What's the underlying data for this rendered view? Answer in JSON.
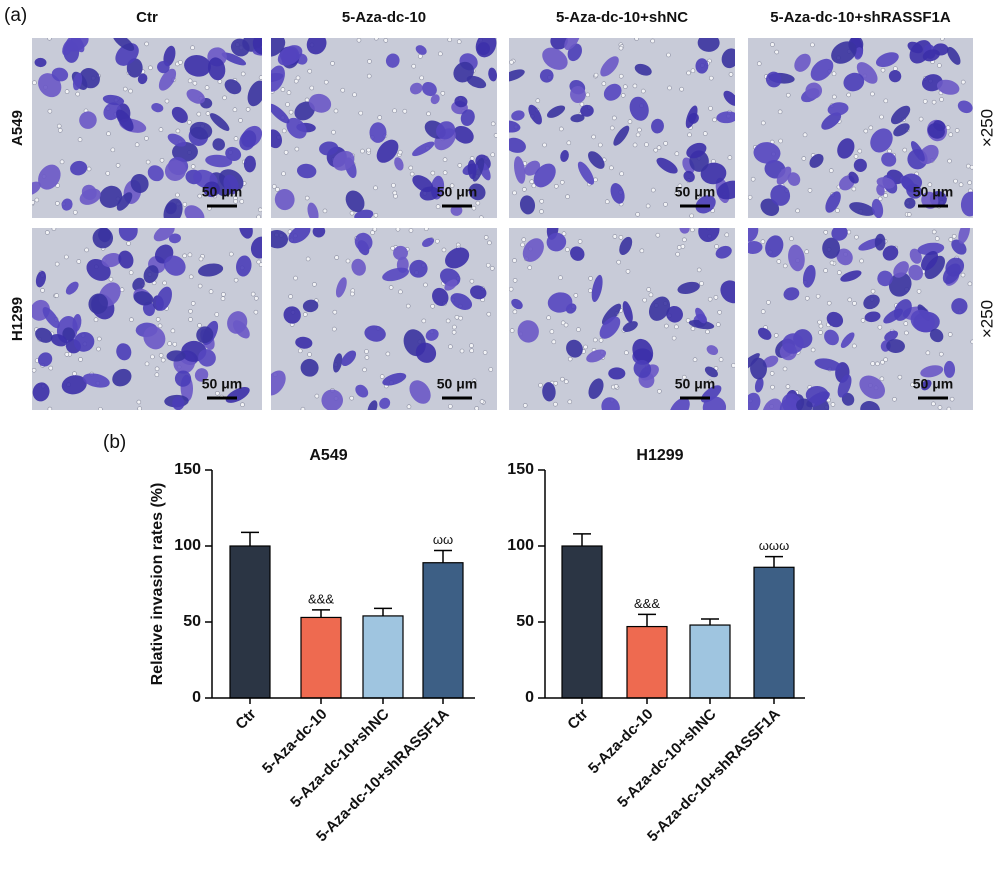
{
  "panel_a": {
    "label": "(a)",
    "columns": [
      "Ctr",
      "5-Aza-dc-10",
      "5-Aza-dc-10+shNC",
      "5-Aza-dc-10+shRASSF1A"
    ],
    "rows": [
      "A549",
      "H1299"
    ],
    "scale_bar": "50 μm",
    "magnification": "×250"
  },
  "panel_b_label": "(b)",
  "chart_data": [
    {
      "type": "bar",
      "title": "A549",
      "ylabel": "Relative invasion rates (%)",
      "categories": [
        "Ctr",
        "5-Aza-dc-10",
        "5-Aza-dc-10+shNC",
        "5-Aza-dc-10+shRASSF1A"
      ],
      "values": [
        100,
        53,
        54,
        89
      ],
      "errors": [
        9,
        5,
        5,
        8
      ],
      "significance": [
        null,
        "&&&",
        null,
        "ωω"
      ],
      "colors": [
        "#2b3544",
        "#ee6a50",
        "#9fc5e0",
        "#3d5f85"
      ],
      "ylim": [
        0,
        150
      ],
      "yticks": [
        0,
        50,
        100,
        150
      ]
    },
    {
      "type": "bar",
      "title": "H1299",
      "categories": [
        "Ctr",
        "5-Aza-dc-10",
        "5-Aza-dc-10+shNC",
        "5-Aza-dc-10+shRASSF1A"
      ],
      "values": [
        100,
        47,
        48,
        86
      ],
      "errors": [
        8,
        8,
        4,
        7
      ],
      "significance": [
        null,
        "&&&",
        null,
        "ωωω"
      ],
      "colors": [
        "#2b3544",
        "#ee6a50",
        "#9fc5e0",
        "#3d5f85"
      ],
      "ylim": [
        0,
        150
      ],
      "yticks": [
        0,
        50,
        100,
        150
      ]
    }
  ]
}
